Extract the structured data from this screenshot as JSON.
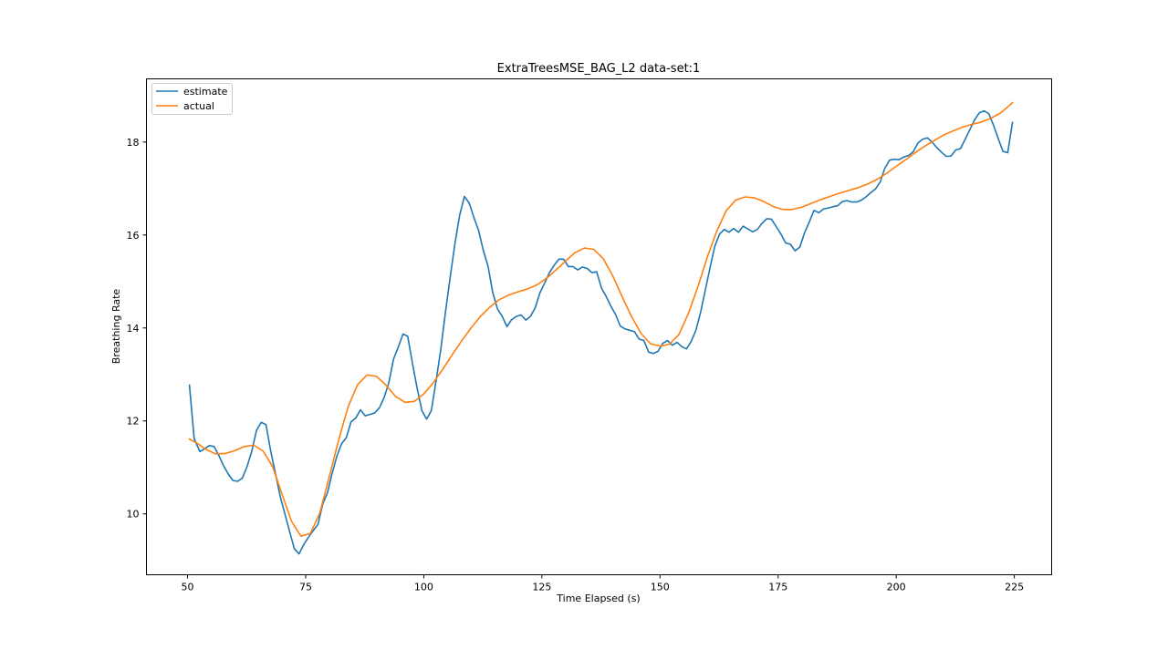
{
  "chart_data": {
    "type": "line",
    "title": "ExtraTreesMSE_BAG_L2 data-set:1",
    "xlabel": "Time Elapsed (s)",
    "ylabel": "Breathing Rate",
    "xlim": [
      41.3,
      232.9
    ],
    "ylim": [
      8.69,
      19.36
    ],
    "xticks": [
      50,
      75,
      100,
      125,
      150,
      175,
      200,
      225
    ],
    "yticks": [
      10,
      12,
      14,
      16,
      18
    ],
    "grid": false,
    "legend_position": "upper left",
    "series": [
      {
        "name": "estimate",
        "color": "#1f77b4",
        "points": [
          [
            50.4,
            12.77
          ],
          [
            51.4,
            11.62
          ],
          [
            52.6,
            11.34
          ],
          [
            53.6,
            11.4
          ],
          [
            54.6,
            11.47
          ],
          [
            55.6,
            11.45
          ],
          [
            56.6,
            11.26
          ],
          [
            57.6,
            11.04
          ],
          [
            58.6,
            10.86
          ],
          [
            59.6,
            10.72
          ],
          [
            60.6,
            10.7
          ],
          [
            61.6,
            10.77
          ],
          [
            62.6,
            11.02
          ],
          [
            63.6,
            11.35
          ],
          [
            64.6,
            11.8
          ],
          [
            65.6,
            11.97
          ],
          [
            66.6,
            11.92
          ],
          [
            67.6,
            11.35
          ],
          [
            68.6,
            10.87
          ],
          [
            69.6,
            10.38
          ],
          [
            70.6,
            10.0
          ],
          [
            71.6,
            9.62
          ],
          [
            72.6,
            9.25
          ],
          [
            73.6,
            9.14
          ],
          [
            74.6,
            9.34
          ],
          [
            75.6,
            9.5
          ],
          [
            76.6,
            9.64
          ],
          [
            77.6,
            9.77
          ],
          [
            78.6,
            10.21
          ],
          [
            79.6,
            10.45
          ],
          [
            80.6,
            10.87
          ],
          [
            81.6,
            11.24
          ],
          [
            82.6,
            11.51
          ],
          [
            83.6,
            11.64
          ],
          [
            84.6,
            11.98
          ],
          [
            85.6,
            12.06
          ],
          [
            86.6,
            12.24
          ],
          [
            87.6,
            12.11
          ],
          [
            88.6,
            12.14
          ],
          [
            89.6,
            12.17
          ],
          [
            90.6,
            12.28
          ],
          [
            91.6,
            12.5
          ],
          [
            92.6,
            12.82
          ],
          [
            93.6,
            13.33
          ],
          [
            94.6,
            13.59
          ],
          [
            95.6,
            13.87
          ],
          [
            96.6,
            13.82
          ],
          [
            97.6,
            13.24
          ],
          [
            98.6,
            12.7
          ],
          [
            99.6,
            12.22
          ],
          [
            100.6,
            12.04
          ],
          [
            101.6,
            12.22
          ],
          [
            102.6,
            12.86
          ],
          [
            103.6,
            13.54
          ],
          [
            104.6,
            14.35
          ],
          [
            105.6,
            15.1
          ],
          [
            106.6,
            15.82
          ],
          [
            107.6,
            16.43
          ],
          [
            108.6,
            16.83
          ],
          [
            109.6,
            16.69
          ],
          [
            110.6,
            16.38
          ],
          [
            111.6,
            16.1
          ],
          [
            112.6,
            15.67
          ],
          [
            113.6,
            15.33
          ],
          [
            114.6,
            14.76
          ],
          [
            115.6,
            14.41
          ],
          [
            116.6,
            14.25
          ],
          [
            117.6,
            14.03
          ],
          [
            118.6,
            14.18
          ],
          [
            119.6,
            14.25
          ],
          [
            120.6,
            14.28
          ],
          [
            121.6,
            14.17
          ],
          [
            122.6,
            14.25
          ],
          [
            123.6,
            14.44
          ],
          [
            124.6,
            14.76
          ],
          [
            125.6,
            14.97
          ],
          [
            126.6,
            15.19
          ],
          [
            127.6,
            15.35
          ],
          [
            128.6,
            15.48
          ],
          [
            129.6,
            15.48
          ],
          [
            130.6,
            15.32
          ],
          [
            131.6,
            15.32
          ],
          [
            132.6,
            15.25
          ],
          [
            133.6,
            15.31
          ],
          [
            134.6,
            15.28
          ],
          [
            135.6,
            15.19
          ],
          [
            136.6,
            15.21
          ],
          [
            137.6,
            14.86
          ],
          [
            138.6,
            14.68
          ],
          [
            139.6,
            14.47
          ],
          [
            140.6,
            14.29
          ],
          [
            141.6,
            14.04
          ],
          [
            142.6,
            13.98
          ],
          [
            143.6,
            13.95
          ],
          [
            144.6,
            13.92
          ],
          [
            145.6,
            13.76
          ],
          [
            146.6,
            13.73
          ],
          [
            147.6,
            13.48
          ],
          [
            148.6,
            13.45
          ],
          [
            149.6,
            13.5
          ],
          [
            150.6,
            13.67
          ],
          [
            151.6,
            13.73
          ],
          [
            152.6,
            13.63
          ],
          [
            153.6,
            13.69
          ],
          [
            154.6,
            13.6
          ],
          [
            155.6,
            13.55
          ],
          [
            156.6,
            13.71
          ],
          [
            157.6,
            13.95
          ],
          [
            158.6,
            14.34
          ],
          [
            159.6,
            14.82
          ],
          [
            160.6,
            15.3
          ],
          [
            161.6,
            15.76
          ],
          [
            162.6,
            16.02
          ],
          [
            163.6,
            16.12
          ],
          [
            164.6,
            16.06
          ],
          [
            165.6,
            16.14
          ],
          [
            166.6,
            16.06
          ],
          [
            167.6,
            16.19
          ],
          [
            168.6,
            16.13
          ],
          [
            169.6,
            16.07
          ],
          [
            170.6,
            16.12
          ],
          [
            171.6,
            16.25
          ],
          [
            172.6,
            16.35
          ],
          [
            173.6,
            16.34
          ],
          [
            174.6,
            16.18
          ],
          [
            175.6,
            16.02
          ],
          [
            176.6,
            15.83
          ],
          [
            177.6,
            15.8
          ],
          [
            178.6,
            15.66
          ],
          [
            179.6,
            15.74
          ],
          [
            180.6,
            16.05
          ],
          [
            181.6,
            16.28
          ],
          [
            182.6,
            16.53
          ],
          [
            183.6,
            16.48
          ],
          [
            184.6,
            16.56
          ],
          [
            185.6,
            16.58
          ],
          [
            186.6,
            16.61
          ],
          [
            187.6,
            16.63
          ],
          [
            188.6,
            16.72
          ],
          [
            189.6,
            16.74
          ],
          [
            190.6,
            16.71
          ],
          [
            191.6,
            16.71
          ],
          [
            192.6,
            16.75
          ],
          [
            193.6,
            16.82
          ],
          [
            194.6,
            16.91
          ],
          [
            195.6,
            16.99
          ],
          [
            196.6,
            17.14
          ],
          [
            197.6,
            17.44
          ],
          [
            198.6,
            17.61
          ],
          [
            199.6,
            17.63
          ],
          [
            200.6,
            17.62
          ],
          [
            201.6,
            17.68
          ],
          [
            202.6,
            17.71
          ],
          [
            203.6,
            17.79
          ],
          [
            204.6,
            17.98
          ],
          [
            205.6,
            18.06
          ],
          [
            206.6,
            18.09
          ],
          [
            207.6,
            18.0
          ],
          [
            208.6,
            17.88
          ],
          [
            209.6,
            17.78
          ],
          [
            210.6,
            17.69
          ],
          [
            211.6,
            17.7
          ],
          [
            212.6,
            17.83
          ],
          [
            213.6,
            17.86
          ],
          [
            214.6,
            18.06
          ],
          [
            215.6,
            18.27
          ],
          [
            216.6,
            18.48
          ],
          [
            217.6,
            18.63
          ],
          [
            218.6,
            18.67
          ],
          [
            219.6,
            18.61
          ],
          [
            220.6,
            18.36
          ],
          [
            221.6,
            18.07
          ],
          [
            222.6,
            17.8
          ],
          [
            223.6,
            17.77
          ],
          [
            224.6,
            18.42
          ]
        ]
      },
      {
        "name": "actual",
        "color": "#ff7f0e",
        "points": [
          [
            50.4,
            11.61
          ],
          [
            52.0,
            11.52
          ],
          [
            54.0,
            11.38
          ],
          [
            56.0,
            11.29
          ],
          [
            58.0,
            11.3
          ],
          [
            60.0,
            11.36
          ],
          [
            62.0,
            11.45
          ],
          [
            64.0,
            11.48
          ],
          [
            66.0,
            11.35
          ],
          [
            68.0,
            11.02
          ],
          [
            70.0,
            10.42
          ],
          [
            72.0,
            9.84
          ],
          [
            74.0,
            9.52
          ],
          [
            76.0,
            9.58
          ],
          [
            78.0,
            10.02
          ],
          [
            80.0,
            10.8
          ],
          [
            82.0,
            11.6
          ],
          [
            84.0,
            12.31
          ],
          [
            86.0,
            12.78
          ],
          [
            88.0,
            12.99
          ],
          [
            90.0,
            12.96
          ],
          [
            92.0,
            12.77
          ],
          [
            94.0,
            12.53
          ],
          [
            96.0,
            12.4
          ],
          [
            98.0,
            12.42
          ],
          [
            100.0,
            12.58
          ],
          [
            102.0,
            12.82
          ],
          [
            104.0,
            13.11
          ],
          [
            106.0,
            13.42
          ],
          [
            108.0,
            13.72
          ],
          [
            110.0,
            14.0
          ],
          [
            112.0,
            14.25
          ],
          [
            114.0,
            14.45
          ],
          [
            116.0,
            14.61
          ],
          [
            118.0,
            14.71
          ],
          [
            120.0,
            14.78
          ],
          [
            122.0,
            14.84
          ],
          [
            124.0,
            14.93
          ],
          [
            126.0,
            15.07
          ],
          [
            128.0,
            15.25
          ],
          [
            130.0,
            15.44
          ],
          [
            132.0,
            15.62
          ],
          [
            134.0,
            15.72
          ],
          [
            136.0,
            15.69
          ],
          [
            138.0,
            15.49
          ],
          [
            140.0,
            15.12
          ],
          [
            142.0,
            14.67
          ],
          [
            144.0,
            14.24
          ],
          [
            146.0,
            13.88
          ],
          [
            148.0,
            13.66
          ],
          [
            150.0,
            13.61
          ],
          [
            152.0,
            13.65
          ],
          [
            154.0,
            13.86
          ],
          [
            156.0,
            14.31
          ],
          [
            158.0,
            14.88
          ],
          [
            160.0,
            15.52
          ],
          [
            162.0,
            16.08
          ],
          [
            164.0,
            16.52
          ],
          [
            166.0,
            16.75
          ],
          [
            168.0,
            16.82
          ],
          [
            170.0,
            16.8
          ],
          [
            172.0,
            16.72
          ],
          [
            174.0,
            16.61
          ],
          [
            176.0,
            16.55
          ],
          [
            178.0,
            16.55
          ],
          [
            180.0,
            16.6
          ],
          [
            182.0,
            16.68
          ],
          [
            184.0,
            16.76
          ],
          [
            186.0,
            16.83
          ],
          [
            188.0,
            16.9
          ],
          [
            190.0,
            16.96
          ],
          [
            192.0,
            17.02
          ],
          [
            194.0,
            17.1
          ],
          [
            196.0,
            17.2
          ],
          [
            198.0,
            17.33
          ],
          [
            200.0,
            17.48
          ],
          [
            202.0,
            17.62
          ],
          [
            204.0,
            17.77
          ],
          [
            206.0,
            17.91
          ],
          [
            208.0,
            18.03
          ],
          [
            210.0,
            18.15
          ],
          [
            212.0,
            18.24
          ],
          [
            214.0,
            18.32
          ],
          [
            216.0,
            18.38
          ],
          [
            218.0,
            18.43
          ],
          [
            220.0,
            18.51
          ],
          [
            222.0,
            18.62
          ],
          [
            224.0,
            18.79
          ],
          [
            224.6,
            18.85
          ]
        ]
      }
    ]
  }
}
